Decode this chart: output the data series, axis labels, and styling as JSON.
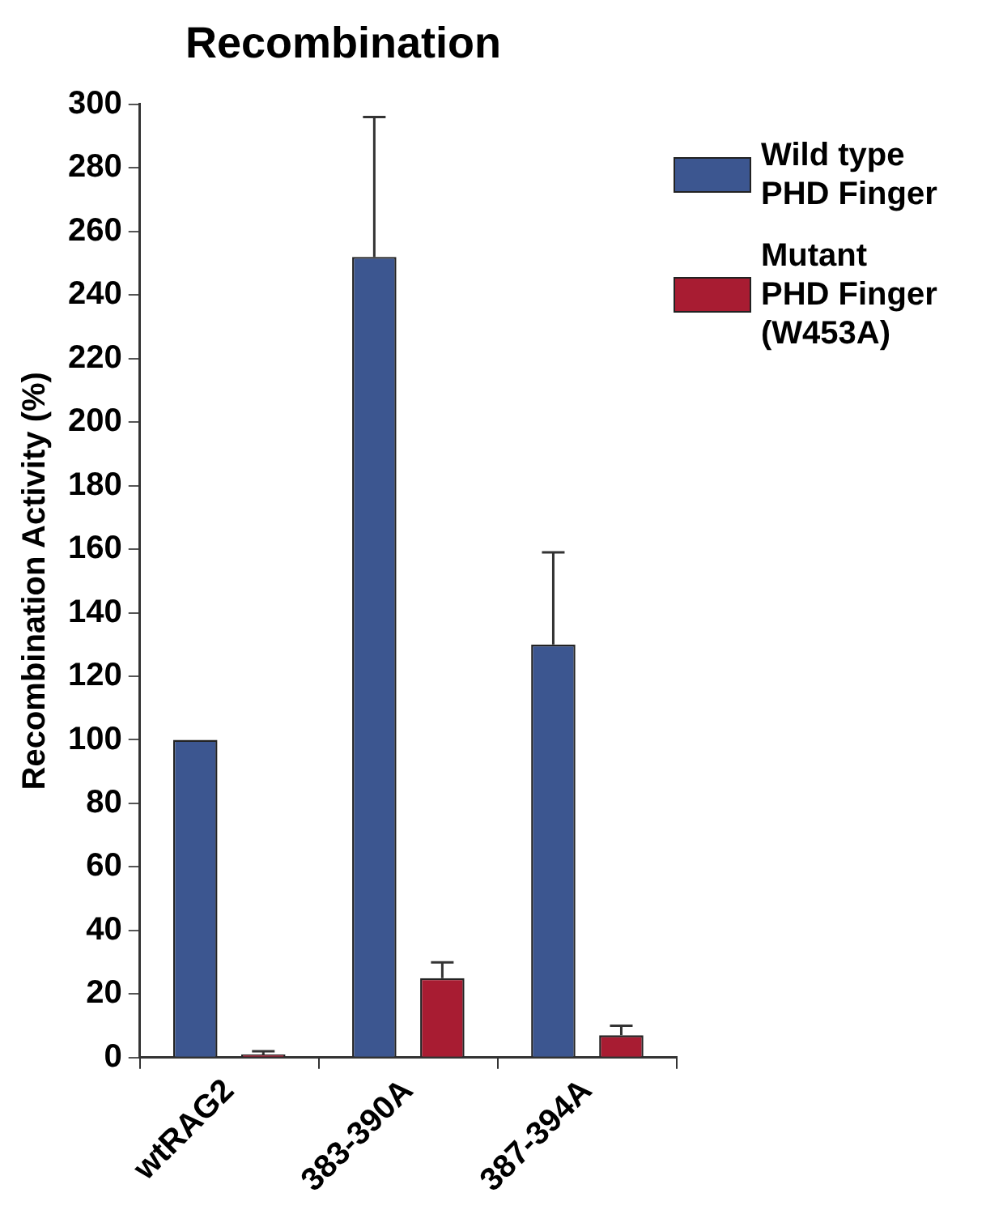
{
  "chart_data": {
    "type": "bar",
    "title": "Recombination",
    "ylabel": "Recombination Activity (%)",
    "categories": [
      "wtRAG2",
      "383-390A",
      "387-394A"
    ],
    "series": [
      {
        "name": "Wild type\nPHD Finger",
        "color": "#3c5690",
        "values": [
          100,
          252,
          130
        ],
        "errors": [
          null,
          44,
          29
        ]
      },
      {
        "name": "Mutant\nPHD Finger\n(W453A)",
        "color": "#a81c32",
        "values": [
          1,
          25,
          7
        ],
        "errors": [
          [
            1,
            2
          ],
          5,
          3
        ]
      }
    ],
    "ylim": [
      0,
      300
    ],
    "yticks": [
      0,
      20,
      40,
      60,
      80,
      100,
      120,
      140,
      160,
      180,
      200,
      220,
      240,
      260,
      280,
      300
    ],
    "grid": false,
    "legend": "top right"
  }
}
